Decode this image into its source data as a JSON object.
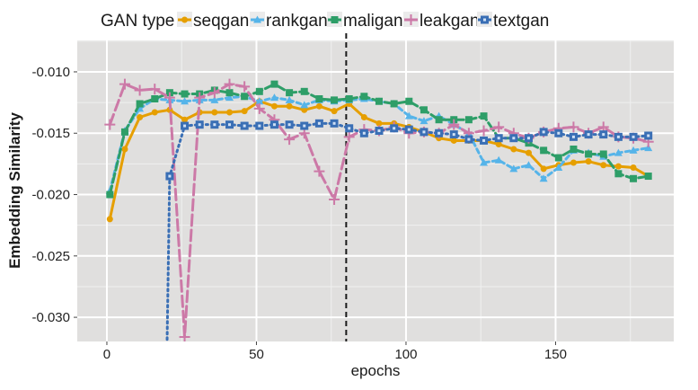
{
  "chart_data": {
    "type": "line",
    "title": "",
    "xlabel": "epochs",
    "ylabel": "Embedding Similarity",
    "xlim": [
      -9.9,
      189.5
    ],
    "ylim": [
      -0.03197,
      -0.00744
    ],
    "xticks": [
      0,
      50,
      100,
      150
    ],
    "xtick_labels": [
      "0",
      "50",
      "100",
      "150"
    ],
    "yticks": [
      -0.01,
      -0.015,
      -0.02,
      -0.025,
      -0.03
    ],
    "ytick_labels": [
      "-0.010",
      "-0.015",
      "-0.020",
      "-0.025",
      "-0.030"
    ],
    "grid": true,
    "vline": {
      "x": 80,
      "style": "dashed",
      "color": "#1a1a1a"
    },
    "legend": {
      "title": "GAN type",
      "placement": "top"
    },
    "series": [
      {
        "name": "seqgan",
        "color": "#E69F00",
        "marker": "circle",
        "dash": "",
        "x": [
          1,
          6,
          11,
          16,
          21,
          26,
          31,
          36,
          41,
          46,
          51,
          56,
          61,
          66,
          71,
          76,
          81,
          86,
          91,
          96,
          101,
          106,
          111,
          116,
          121,
          126,
          131,
          136,
          141,
          146,
          151,
          156,
          161,
          166,
          171,
          176,
          181
        ],
        "values": [
          -0.022,
          -0.0163,
          -0.0137,
          -0.0133,
          -0.0131,
          -0.0139,
          -0.0133,
          -0.0133,
          -0.0133,
          -0.0132,
          -0.0124,
          -0.0128,
          -0.0128,
          -0.0131,
          -0.0128,
          -0.0132,
          -0.0126,
          -0.0137,
          -0.0142,
          -0.0142,
          -0.0145,
          -0.0149,
          -0.0154,
          -0.0156,
          -0.0156,
          -0.0156,
          -0.0159,
          -0.0163,
          -0.0166,
          -0.0179,
          -0.0176,
          -0.0174,
          -0.0173,
          -0.0176,
          -0.0177,
          -0.0178,
          -0.0185
        ]
      },
      {
        "name": "rankgan",
        "color": "#56B4E9",
        "marker": "triangle",
        "dash": "5,4",
        "x": [
          1,
          6,
          11,
          16,
          21,
          26,
          31,
          36,
          41,
          46,
          51,
          56,
          61,
          66,
          71,
          76,
          81,
          86,
          91,
          96,
          101,
          106,
          111,
          116,
          121,
          126,
          131,
          136,
          141,
          146,
          151,
          156,
          161,
          166,
          171,
          176,
          181
        ],
        "values": [
          -0.0197,
          -0.0148,
          -0.013,
          -0.0122,
          -0.0123,
          -0.0124,
          -0.0123,
          -0.0123,
          -0.0121,
          -0.012,
          -0.0124,
          -0.0121,
          -0.0123,
          -0.0127,
          -0.0123,
          -0.0124,
          -0.0123,
          -0.0122,
          -0.0124,
          -0.0126,
          -0.0136,
          -0.014,
          -0.0136,
          -0.0143,
          -0.015,
          -0.0174,
          -0.0172,
          -0.0179,
          -0.0176,
          -0.0187,
          -0.0178,
          -0.0164,
          -0.0166,
          -0.0169,
          -0.0166,
          -0.0164,
          -0.0162
        ]
      },
      {
        "name": "maligan",
        "color": "#2E9E68",
        "marker": "square",
        "dash": "10,4",
        "x": [
          1,
          6,
          11,
          16,
          21,
          26,
          31,
          36,
          41,
          46,
          51,
          56,
          61,
          66,
          71,
          76,
          81,
          86,
          91,
          96,
          101,
          106,
          111,
          116,
          121,
          126,
          131,
          136,
          141,
          146,
          151,
          156,
          161,
          166,
          171,
          176,
          181
        ],
        "values": [
          -0.02,
          -0.0149,
          -0.0126,
          -0.0122,
          -0.0117,
          -0.0118,
          -0.0118,
          -0.0115,
          -0.0117,
          -0.012,
          -0.0116,
          -0.011,
          -0.0117,
          -0.0116,
          -0.0122,
          -0.0123,
          -0.0122,
          -0.012,
          -0.0124,
          -0.0126,
          -0.0124,
          -0.0131,
          -0.0139,
          -0.0139,
          -0.0139,
          -0.0136,
          -0.0154,
          -0.0154,
          -0.0158,
          -0.0164,
          -0.017,
          -0.0163,
          -0.0167,
          -0.0167,
          -0.0183,
          -0.0187,
          -0.0185
        ]
      },
      {
        "name": "leakgan",
        "color": "#CC79A7",
        "marker": "plus",
        "dash": "12,5",
        "x": [
          1,
          6,
          11,
          16,
          21,
          26,
          31,
          36,
          41,
          46,
          51,
          56,
          61,
          66,
          71,
          76,
          81,
          86,
          91,
          96,
          101,
          106,
          111,
          116,
          121,
          126,
          131,
          136,
          141,
          146,
          151,
          156,
          161,
          166,
          171,
          176,
          181
        ],
        "values": [
          -0.0143,
          -0.011,
          -0.0115,
          -0.0114,
          -0.0121,
          -0.0316,
          -0.0121,
          -0.0117,
          -0.011,
          -0.0112,
          -0.013,
          -0.0139,
          -0.0155,
          -0.015,
          -0.0181,
          -0.0204,
          -0.0153,
          -0.0147,
          -0.0148,
          -0.0145,
          -0.015,
          -0.0149,
          -0.015,
          -0.0143,
          -0.015,
          -0.0148,
          -0.0145,
          -0.015,
          -0.0154,
          -0.0149,
          -0.0146,
          -0.0145,
          -0.015,
          -0.0145,
          -0.0153,
          -0.0154,
          -0.0157
        ]
      },
      {
        "name": "textgan",
        "color": "#3A6FB5",
        "marker": "square-dot",
        "dash": "2,4",
        "x": [
          20,
          21,
          26,
          31,
          36,
          41,
          46,
          51,
          56,
          61,
          66,
          71,
          76,
          81,
          86,
          91,
          96,
          101,
          106,
          111,
          116,
          121,
          126,
          131,
          136,
          141,
          146,
          151,
          156,
          161,
          166,
          171,
          176,
          181
        ],
        "values": [
          -0.034,
          -0.0185,
          -0.0144,
          -0.0143,
          -0.0143,
          -0.0143,
          -0.0144,
          -0.0144,
          -0.0143,
          -0.0143,
          -0.0144,
          -0.0142,
          -0.0142,
          -0.0146,
          -0.015,
          -0.0148,
          -0.0146,
          -0.0147,
          -0.0149,
          -0.015,
          -0.0151,
          -0.0155,
          -0.0156,
          -0.0154,
          -0.0154,
          -0.0154,
          -0.0149,
          -0.015,
          -0.0153,
          -0.0151,
          -0.0151,
          -0.0153,
          -0.0153,
          -0.0152
        ]
      }
    ]
  }
}
